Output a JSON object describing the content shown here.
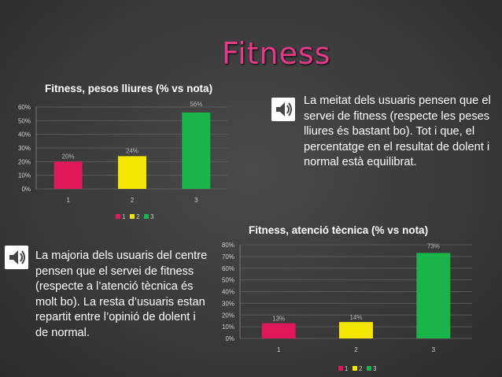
{
  "slide_title": "Fitness",
  "colors": {
    "accent": "#e53a86",
    "bar1": "#e0185a",
    "bar2": "#f2e600",
    "bar3": "#19b44a"
  },
  "text_top": "La meitat dels usuaris pensen que el servei de fitness (respecte les peses lliures és bastant bo). Tot i que, el percentatge en el resultat de dolent i normal està equilibrat.",
  "text_bottom": "La majoria dels usuaris del centre pensen que el servei de fitness (respecte a l’atenció tècnica és molt bo). La resta d’usuaris estan repartit entre l’opinió de dolent i de normal.",
  "icons": {
    "speaker": "speaker-icon"
  },
  "chart_data": [
    {
      "type": "bar",
      "title": "Fitness, pesos lliures (% vs nota)",
      "categories": [
        "1",
        "2",
        "3"
      ],
      "values": [
        20,
        24,
        56
      ],
      "data_labels": [
        "20%",
        "24%",
        "56%"
      ],
      "yticks": [
        "0%",
        "10%",
        "20%",
        "30%",
        "40%",
        "50%",
        "60%"
      ],
      "ylim": [
        0,
        60
      ],
      "legend": [
        "1",
        "2",
        "3"
      ],
      "legend_position": "bottom",
      "grid": true
    },
    {
      "type": "bar",
      "title": "Fitness, atenció tècnica (% vs nota)",
      "categories": [
        "1",
        "2",
        "3"
      ],
      "values": [
        13,
        14,
        73
      ],
      "data_labels": [
        "13%",
        "14%",
        "73%"
      ],
      "yticks": [
        "0%",
        "10%",
        "20%",
        "30%",
        "40%",
        "50%",
        "60%",
        "70%",
        "80%"
      ],
      "ylim": [
        0,
        80
      ],
      "legend": [
        "1",
        "2",
        "3"
      ],
      "legend_position": "bottom",
      "grid": true
    }
  ]
}
